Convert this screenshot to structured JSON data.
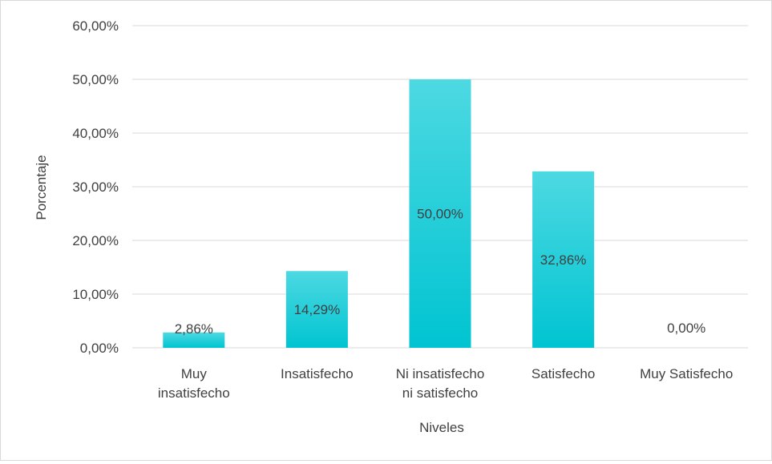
{
  "chart_data": {
    "type": "bar",
    "categories": [
      [
        "Muy",
        "insatisfecho"
      ],
      [
        "Insatisfecho"
      ],
      [
        "Ni insatisfecho",
        "ni satisfecho"
      ],
      [
        "Satisfecho"
      ],
      [
        "Muy Satisfecho"
      ]
    ],
    "values": [
      2.86,
      14.29,
      50.0,
      32.86,
      0.0
    ],
    "data_labels": [
      "2,86%",
      "14,29%",
      "50,00%",
      "32,86%",
      "0,00%"
    ],
    "yticks": [
      "0,00%",
      "10,00%",
      "20,00%",
      "30,00%",
      "40,00%",
      "50,00%",
      "60,00%"
    ],
    "xlabel": "Niveles",
    "ylabel": "Porcentaje",
    "ylim": [
      0,
      60
    ],
    "grid": true,
    "legend": "none",
    "bar_color_top": "#4dd9e2",
    "bar_color_bottom": "#00c4d1"
  }
}
